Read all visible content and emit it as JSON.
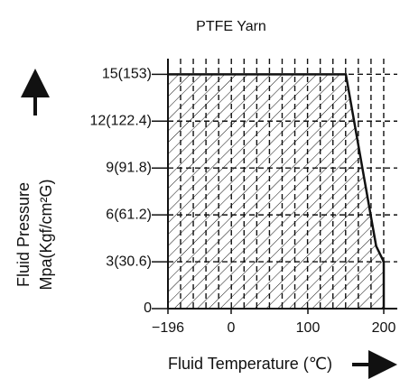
{
  "chart_data": {
    "type": "area",
    "title": "PTFE Yarn",
    "y_label": [
      "Fluid Pressure",
      "Mpa(Kgf/cm²G)"
    ],
    "x_label": "Fluid Temperature (℃)",
    "x": [
      -196,
      150,
      190,
      200,
      200
    ],
    "values": [
      15,
      15,
      4,
      3,
      0
    ],
    "color": "#111111",
    "hatch": true,
    "grid": true,
    "ylim": [
      0,
      16
    ],
    "yticks": [
      0,
      {
        "value": 3,
        "label": "3(30.6)"
      },
      {
        "value": 6,
        "label": "6(61.2)"
      },
      {
        "value": 9,
        "label": "9(91.8)"
      },
      {
        "value": 12,
        "label": "12(122.4)"
      },
      {
        "value": 15,
        "label": "15(153)"
      }
    ],
    "xticks": [
      {
        "value": -196,
        "label": "−196"
      },
      0,
      100,
      200
    ]
  }
}
